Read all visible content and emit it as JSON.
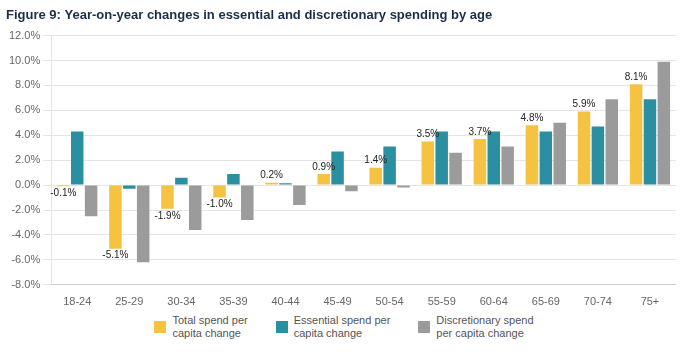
{
  "chart_data": {
    "type": "bar",
    "title": "Figure 9: Year-on-year changes in essential and discretionary spending by age",
    "categories": [
      "18-24",
      "25-29",
      "30-34",
      "35-39",
      "40-44",
      "45-49",
      "50-54",
      "55-59",
      "60-64",
      "65-69",
      "70-74",
      "75+"
    ],
    "series": [
      {
        "name": "Total spend per\ncapita change",
        "color": "#f5c242",
        "values": [
          -0.1,
          -5.1,
          -1.9,
          -1.0,
          0.2,
          0.9,
          1.4,
          3.5,
          3.7,
          4.8,
          5.9,
          8.1
        ],
        "data_labels": true,
        "value_labels": [
          "-0.1%",
          "-5.1%",
          "-1.9%",
          "-1.0%",
          "0.2%",
          "0.9%",
          "1.4%",
          "3.5%",
          "3.7%",
          "4.8%",
          "5.9%",
          "8.1%"
        ]
      },
      {
        "name": "Essential spend per\ncapita change",
        "color": "#2a8fa0",
        "values": [
          4.3,
          -0.3,
          0.6,
          0.9,
          0.15,
          2.7,
          3.1,
          4.3,
          4.3,
          4.3,
          4.7,
          6.9
        ]
      },
      {
        "name": "Discretionary spend\nper capita change",
        "color": "#9b9b9b",
        "values": [
          -2.5,
          -6.2,
          -3.6,
          -2.8,
          -1.6,
          -0.5,
          -0.2,
          2.6,
          3.1,
          5.0,
          6.9,
          9.9
        ]
      }
    ],
    "ylim": [
      -8.0,
      12.0
    ],
    "yticks": [
      {
        "value": -8.0,
        "label": "-8.0%"
      },
      {
        "value": -6.0,
        "label": "-6.0%"
      },
      {
        "value": -4.0,
        "label": "-4.0%"
      },
      {
        "value": -2.0,
        "label": "-2.0%"
      },
      {
        "value": 0.0,
        "label": "0.0%"
      },
      {
        "value": 2.0,
        "label": "2.0%"
      },
      {
        "value": 4.0,
        "label": "4.0%"
      },
      {
        "value": 6.0,
        "label": "6.0%"
      },
      {
        "value": 8.0,
        "label": "8.0%"
      },
      {
        "value": 10.0,
        "label": "10.0%"
      },
      {
        "value": 12.0,
        "label": "12.0%"
      }
    ],
    "grid": true,
    "legend": "bottom"
  }
}
